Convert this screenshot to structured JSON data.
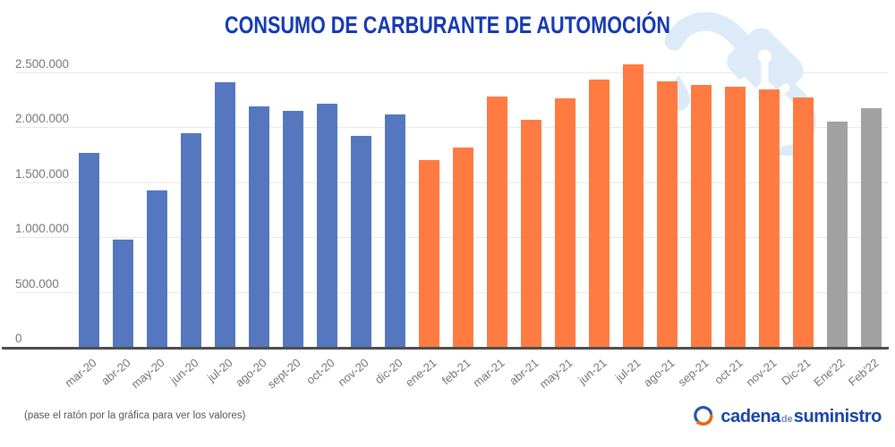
{
  "title": "CONSUMO DE CARBURANTE DE AUTOMOCIÓN",
  "footer": {
    "hint": "(pase el ratón por la gráfica para ver los valores)",
    "brand": {
      "part1": "cadena",
      "part2": "de",
      "part3": "suministro"
    }
  },
  "watermark_icon": "fuel-pump-nozzle-icon",
  "colors": {
    "title_blue": "#1639b2",
    "axis_text": "#757575",
    "baseline": "#4d4d4d",
    "gridline": "#e9e9e9",
    "watermark_blue": "#dcebf7",
    "brand_blue": "#1945a8",
    "brand_orange": "#e8650f",
    "bar_2020": "#5577c0",
    "bar_2021": "#ff7b42",
    "bar_2022": "#a2a2a2"
  },
  "chart_data": {
    "type": "bar",
    "title": "CONSUMO DE CARBURANTE DE AUTOMOCIÓN",
    "xlabel": "",
    "ylabel": "",
    "ylim": [
      0,
      2700000
    ],
    "grid": true,
    "legend": "none",
    "y_ticks": [
      "0",
      "500.000",
      "1.000.000",
      "1.500.000",
      "2.000.000",
      "2.500.000"
    ],
    "categories": [
      "mar-20",
      "abr-20",
      "may-20",
      "jun-20",
      "jul-20",
      "ago-20",
      "sept-20",
      "oct-20",
      "nov-20",
      "dic-20",
      "ene-21",
      "feb-21",
      "mar-21",
      "abr-21",
      "may-21",
      "jun-21",
      "jul-21",
      "ago-21",
      "sep-21",
      "oct-21",
      "nov-21",
      "Dic-21",
      "Ene'22",
      "Feb'22"
    ],
    "values": [
      1773000,
      984000,
      1428000,
      1948000,
      2412000,
      2194000,
      2156000,
      2223000,
      1927000,
      2124000,
      1709000,
      1824000,
      2285000,
      2075000,
      2269000,
      2439000,
      2574000,
      2420000,
      2393000,
      2377000,
      2352000,
      2277000,
      2061000,
      2182000
    ],
    "color_groups": [
      "2020",
      "2020",
      "2020",
      "2020",
      "2020",
      "2020",
      "2020",
      "2020",
      "2020",
      "2020",
      "2021",
      "2021",
      "2021",
      "2021",
      "2021",
      "2021",
      "2021",
      "2021",
      "2021",
      "2021",
      "2021",
      "2021",
      "2022",
      "2022"
    ],
    "group_colors": {
      "2020": "#5577c0",
      "2021": "#ff7b42",
      "2022": "#a2a2a2"
    }
  }
}
